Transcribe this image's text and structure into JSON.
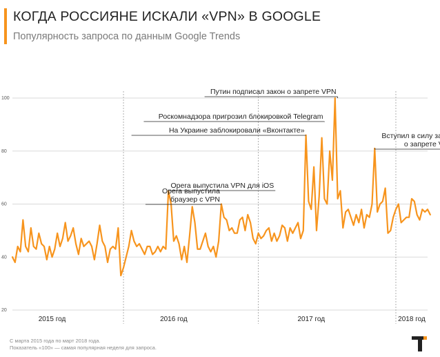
{
  "header": {
    "title": "КОГДА РОССИЯНЕ ИСКАЛИ «VPN» В GOOGLE",
    "subtitle": "Популярность запроса по данным Google Trends"
  },
  "footer": {
    "note1": "С марта 2015 года по март 2018 года.",
    "note2": "Показатель «100» — самая популярная неделя для запроса."
  },
  "logo": {
    "icon": "t-logo-icon",
    "text": "T"
  },
  "colors": {
    "line": "#f7941d",
    "accent": "#f7941d",
    "grid": "#d9d9d9",
    "text": "#222222"
  },
  "chart_data": {
    "type": "line",
    "title": "КОГДА РОССИЯНЕ ИСКАЛИ «VPN» В GOOGLE",
    "subtitle": "Популярность запроса по данным Google Trends",
    "ylim": [
      20,
      100
    ],
    "yticks": [
      20,
      40,
      60,
      80,
      100
    ],
    "x_range": [
      0,
      157
    ],
    "grid": true,
    "year_labels": [
      {
        "label": "2015 год",
        "x": 15
      },
      {
        "label": "2016 год",
        "x": 61
      },
      {
        "label": "2017 год",
        "x": 113
      },
      {
        "label": "2018 год",
        "x": 151
      }
    ],
    "year_dividers": [
      42,
      93,
      145
    ],
    "series": [
      {
        "values": [
          40,
          38,
          44,
          42,
          54,
          44,
          42,
          51,
          44,
          43,
          49,
          45,
          44,
          39,
          44,
          40,
          43,
          49,
          44,
          47,
          53,
          46,
          48,
          51,
          45,
          41,
          47,
          44,
          45,
          46,
          44,
          39,
          45,
          52,
          46,
          44,
          38,
          43,
          44,
          43,
          51,
          33,
          36,
          40,
          44,
          50,
          46,
          44,
          45,
          43,
          41,
          44,
          44,
          41,
          42,
          44,
          42,
          44,
          43,
          65,
          60,
          46,
          48,
          45,
          39,
          44,
          38,
          48,
          59,
          53,
          43,
          43,
          46,
          49,
          44,
          42,
          44,
          40,
          46,
          60,
          55,
          54,
          50,
          51,
          49,
          49,
          54,
          55,
          50,
          56,
          53,
          47,
          45,
          49,
          47,
          48,
          50,
          51,
          46,
          49,
          46,
          48,
          52,
          51,
          46,
          51,
          49,
          51,
          53,
          47,
          50,
          86,
          61,
          58,
          74,
          50,
          63,
          85,
          62,
          60,
          80,
          69,
          100,
          62,
          65,
          51,
          57,
          58,
          55,
          52,
          56,
          53,
          58,
          51,
          56,
          55,
          60,
          81,
          57,
          60,
          61,
          66,
          49,
          50,
          55,
          58,
          60,
          53,
          54,
          55,
          55,
          62,
          61,
          56,
          54,
          58,
          57,
          58,
          56
        ],
        "color": "#f7941d"
      }
    ],
    "annotations": [
      {
        "text": "Opera выпустила VPN для iOS",
        "x": 59,
        "y": 65
      },
      {
        "text": "Opera выпустила",
        "line2": "браузер с VPN",
        "x": 79,
        "y": 60
      },
      {
        "text": "На Украине заблокировали «Вконтакте»",
        "x": 111,
        "y": 86
      },
      {
        "text": "Роскомнадзора пригрозил блокировкой Telegram",
        "x": 118,
        "y": 91
      },
      {
        "text": "Путин подписал закон о запрете VPN",
        "x": 123,
        "y": 100
      },
      {
        "text": "Вступил в силу закон",
        "line2": "о запрете VPN",
        "x": 137,
        "y": 81
      }
    ]
  }
}
